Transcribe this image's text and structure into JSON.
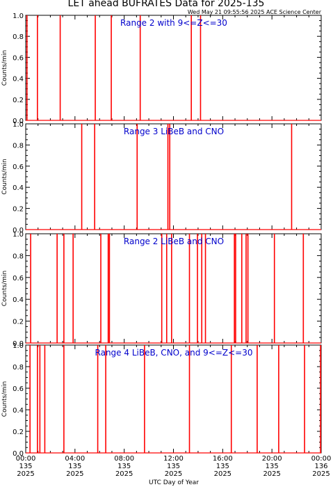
{
  "title": "LET ahead BUFRATES Data for 2025-135",
  "timestamp": "Wed May 21 09:55:56 2025 ACE Science Center",
  "xlabel": "UTC Day of Year",
  "colors": {
    "data": "#ff0000",
    "panel_title": "#0000cc",
    "axis": "#000000",
    "background": "#ffffff"
  },
  "chart_data": [
    {
      "type": "line",
      "title": "Range 2 with 9<=Z<=30",
      "ylabel": "Counts/min",
      "ylim": [
        0,
        1
      ],
      "xlim": [
        0,
        24
      ],
      "x_unit": "hours UTC",
      "spikes": [
        0.1,
        0.95,
        2.8,
        5.65,
        6.95,
        9.3,
        13.45,
        14.2
      ]
    },
    {
      "type": "line",
      "title": "Range 3 LiBeB and CNO",
      "ylabel": "Counts/min",
      "ylim": [
        0,
        1
      ],
      "xlim": [
        0,
        24
      ],
      "x_unit": "hours UTC",
      "spikes": [
        4.55,
        5.6,
        9.05,
        11.55,
        11.7,
        21.6
      ]
    },
    {
      "type": "line",
      "title": "Range 2 LiBeB and CNO",
      "ylabel": "Counts/min",
      "ylim": [
        0,
        1
      ],
      "xlim": [
        0,
        24
      ],
      "x_unit": "hours UTC",
      "spikes": [
        0.4,
        2.55,
        3.1,
        3.85,
        6.1,
        6.7,
        6.8,
        11.05,
        11.45,
        11.85,
        13.3,
        13.95,
        14.3,
        14.6,
        16.95,
        17.05,
        17.55,
        17.9,
        18.05,
        20.2,
        22.55
      ]
    },
    {
      "type": "line",
      "title": "Range 4 LiBeB, CNO, and 9<=Z<=30",
      "ylabel": "Counts/min",
      "ylim": [
        0,
        1
      ],
      "xlim": [
        0,
        24
      ],
      "x_unit": "hours UTC",
      "spikes": [
        0.35,
        0.95,
        1.15,
        1.55,
        3.1,
        5.85,
        6.5,
        9.65,
        13.3,
        16.7,
        18.8,
        20.55,
        22.65,
        23.95
      ]
    }
  ],
  "x_ticks": [
    {
      "time": "00:00",
      "doy": "135",
      "year": "2025"
    },
    {
      "time": "04:00",
      "doy": "135",
      "year": "2025"
    },
    {
      "time": "08:00",
      "doy": "135",
      "year": "2025"
    },
    {
      "time": "12:00",
      "doy": "135",
      "year": "2025"
    },
    {
      "time": "16:00",
      "doy": "135",
      "year": "2025"
    },
    {
      "time": "20:00",
      "doy": "135",
      "year": "2025"
    },
    {
      "time": "00:00",
      "doy": "136",
      "year": "2025"
    }
  ],
  "y_ticks": [
    "0.0",
    "0.2",
    "0.4",
    "0.6",
    "0.8",
    "1.0"
  ]
}
